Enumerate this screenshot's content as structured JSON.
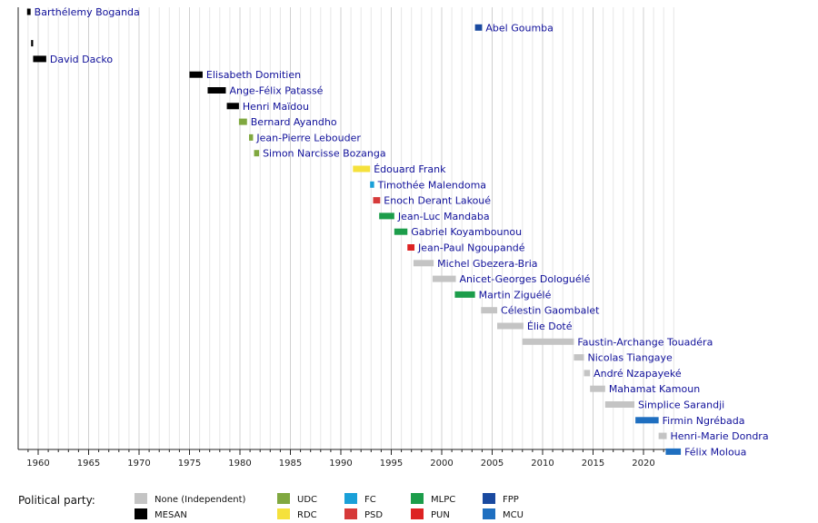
{
  "chart_data": {
    "type": "timeline",
    "title": "",
    "x_range": [
      1958,
      2024
    ],
    "x_ticks": [
      1960,
      1965,
      1970,
      1975,
      1980,
      1985,
      1990,
      1995,
      2000,
      2005,
      2010,
      2015,
      2020
    ],
    "grid": true,
    "legend_title": "Political party:",
    "legend_position": "bottom",
    "parties": [
      {
        "name": "None (Independent)",
        "color": "#c4c4c4"
      },
      {
        "name": "MESAN",
        "color": "#000000"
      },
      {
        "name": "UDC",
        "color": "#80a840"
      },
      {
        "name": "RDC",
        "color": "#f5e13c"
      },
      {
        "name": "FC",
        "color": "#1aa0d8"
      },
      {
        "name": "PSD",
        "color": "#d63a3a"
      },
      {
        "name": "MLPC",
        "color": "#1c9d4a"
      },
      {
        "name": "PUN",
        "color": "#dd2222"
      },
      {
        "name": "FPP",
        "color": "#1a4aa0"
      },
      {
        "name": "MCU",
        "color": "#1f6fc0"
      }
    ],
    "entries": [
      {
        "name": "Barthélemy Boganda",
        "start": 1958.9,
        "end": 1959.25,
        "party": "MESAN"
      },
      {
        "name": "Abel Goumba",
        "start": 2003.3,
        "end": 2004.0,
        "party": "FPP"
      },
      {
        "name": "",
        "start": 1959.3,
        "end": 1959.5,
        "party": "MESAN"
      },
      {
        "name": "David Dacko",
        "start": 1959.5,
        "end": 1960.8,
        "party": "MESAN"
      },
      {
        "name": "Elisabeth Domitien",
        "start": 1975.0,
        "end": 1976.3,
        "party": "MESAN"
      },
      {
        "name": "Ange-Félix Patassé",
        "start": 1976.8,
        "end": 1978.6,
        "party": "MESAN"
      },
      {
        "name": "Henri Maïdou",
        "start": 1978.7,
        "end": 1979.9,
        "party": "MESAN"
      },
      {
        "name": "Bernard Ayandho",
        "start": 1979.9,
        "end": 1980.7,
        "party": "UDC"
      },
      {
        "name": "Jean-Pierre Lebouder",
        "start": 1980.9,
        "end": 1981.3,
        "party": "UDC"
      },
      {
        "name": "Simon Narcisse Bozanga",
        "start": 1981.4,
        "end": 1981.9,
        "party": "UDC"
      },
      {
        "name": "Édouard Frank",
        "start": 1991.2,
        "end": 1992.9,
        "party": "RDC"
      },
      {
        "name": "Timothée Malendoma",
        "start": 1992.9,
        "end": 1993.3,
        "party": "FC"
      },
      {
        "name": "Enoch Derant Lakoué",
        "start": 1993.2,
        "end": 1993.9,
        "party": "PSD"
      },
      {
        "name": "Jean-Luc Mandaba",
        "start": 1993.8,
        "end": 1995.3,
        "party": "MLPC"
      },
      {
        "name": "Gabriel Koyambounou",
        "start": 1995.3,
        "end": 1996.6,
        "party": "MLPC"
      },
      {
        "name": "Jean-Paul Ngoupandé",
        "start": 1996.6,
        "end": 1997.3,
        "party": "PUN"
      },
      {
        "name": "Michel Gbezera-Bria",
        "start": 1997.2,
        "end": 1999.2,
        "party": "None (Independent)"
      },
      {
        "name": "Anicet-Georges Dologuélé",
        "start": 1999.1,
        "end": 2001.4,
        "party": "None (Independent)"
      },
      {
        "name": "Martin Ziguélé",
        "start": 2001.3,
        "end": 2003.3,
        "party": "MLPC"
      },
      {
        "name": "Célestin Gaombalet",
        "start": 2003.9,
        "end": 2005.5,
        "party": "None (Independent)"
      },
      {
        "name": "Élie Doté",
        "start": 2005.5,
        "end": 2008.1,
        "party": "None (Independent)"
      },
      {
        "name": "Faustin-Archange Touadéra",
        "start": 2008.0,
        "end": 2013.1,
        "party": "None (Independent)"
      },
      {
        "name": "Nicolas Tiangaye",
        "start": 2013.1,
        "end": 2014.1,
        "party": "None (Independent)"
      },
      {
        "name": "André Nzapayeké",
        "start": 2014.1,
        "end": 2014.7,
        "party": "None (Independent)"
      },
      {
        "name": "Mahamat Kamoun",
        "start": 2014.7,
        "end": 2016.2,
        "party": "None (Independent)"
      },
      {
        "name": "Simplice Sarandji",
        "start": 2016.2,
        "end": 2019.1,
        "party": "None (Independent)"
      },
      {
        "name": "Firmin Ngrébada",
        "start": 2019.2,
        "end": 2021.5,
        "party": "MCU"
      },
      {
        "name": "Henri-Marie Dondra",
        "start": 2021.5,
        "end": 2022.3,
        "party": "None (Independent)"
      },
      {
        "name": "Félix Moloua",
        "start": 2022.2,
        "end": 2023.7,
        "party": "MCU"
      }
    ]
  }
}
